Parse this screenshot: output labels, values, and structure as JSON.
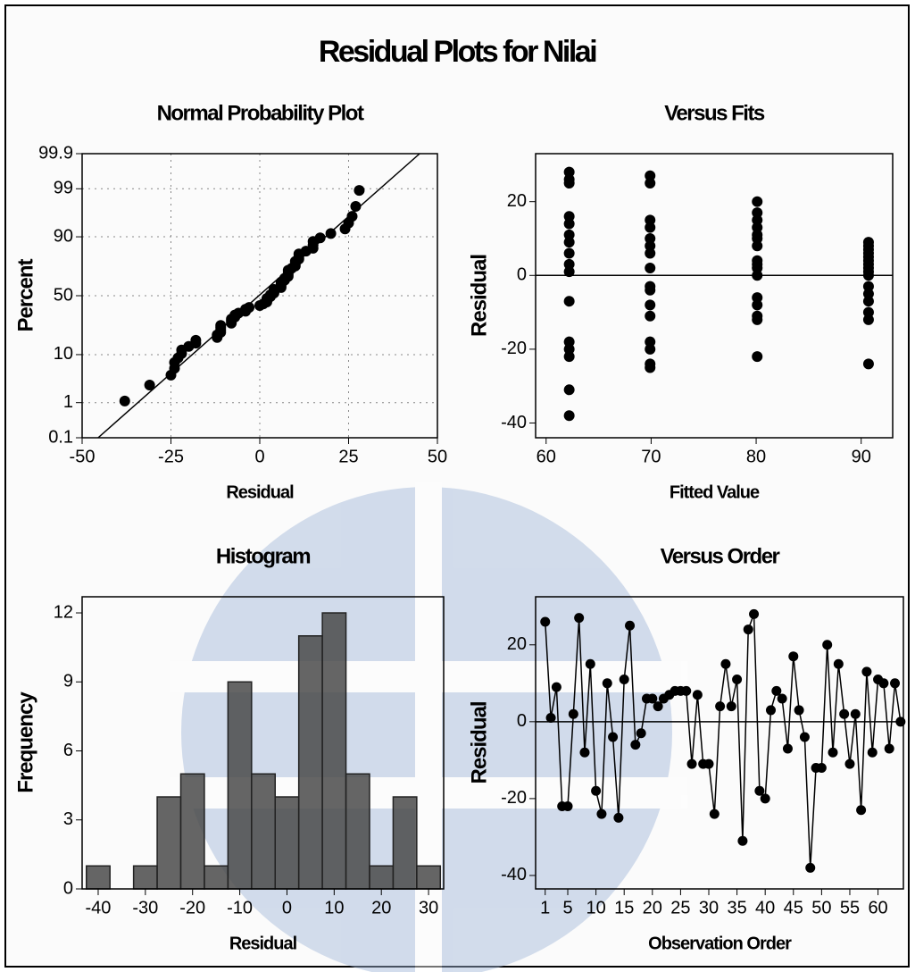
{
  "title": "Residual Plots for Nilai",
  "chart_data": [
    {
      "type": "scatter",
      "yscale": "probability",
      "title": "Normal Probability Plot",
      "x_label": "Residual",
      "y_label": "Percent",
      "color": "#000000",
      "grid": true,
      "x": [
        -38,
        -31,
        -25,
        -24,
        -24,
        -23,
        -22,
        -22,
        -20,
        -18,
        -18,
        -12,
        -12,
        -11,
        -11,
        -11,
        -11,
        -8,
        -8,
        -8,
        -7,
        -7,
        -6,
        -4,
        -4,
        -3,
        0,
        1,
        2,
        2,
        2,
        3,
        3,
        4,
        4,
        4,
        6,
        6,
        6,
        6,
        7,
        7,
        8,
        8,
        8,
        8,
        9,
        10,
        10,
        10,
        11,
        11,
        11,
        13,
        15,
        15,
        15,
        17,
        20,
        24,
        25,
        26,
        27,
        28
      ],
      "values": [
        1.1,
        2.6,
        4.2,
        5.7,
        7.3,
        8.8,
        10.4,
        11.9,
        13.5,
        15.1,
        16.6,
        18.2,
        19.7,
        21.3,
        22.8,
        24.4,
        25.9,
        27.5,
        29.0,
        30.6,
        32.1,
        33.7,
        35.2,
        36.8,
        38.4,
        39.9,
        41.5,
        43.0,
        44.6,
        46.1,
        47.7,
        49.2,
        50.8,
        52.3,
        53.9,
        55.4,
        57.0,
        58.5,
        60.1,
        61.6,
        63.2,
        64.8,
        66.3,
        67.9,
        69.4,
        71.0,
        72.5,
        74.1,
        75.6,
        77.2,
        78.7,
        80.3,
        81.8,
        83.4,
        84.9,
        86.5,
        88.1,
        89.6,
        91.2,
        92.7,
        94.3,
        95.8,
        97.4,
        98.9
      ],
      "fit_line": {
        "x": [
          -45.5,
          45
        ],
        "y": [
          0.1,
          99.9
        ]
      },
      "xlim": [
        -50,
        50
      ],
      "xticks": [
        -50,
        -25,
        0,
        25,
        50
      ],
      "ylim": [
        0.1,
        99.9
      ],
      "yticks": [
        0.1,
        1,
        10,
        50,
        90,
        99,
        99.9
      ]
    },
    {
      "type": "scatter",
      "title": "Versus Fits",
      "x_label": "Fitted Value",
      "y_label": "Residual",
      "color": "#000000",
      "x": [
        62.2,
        62.2,
        62.2,
        62.2,
        62.2,
        62.2,
        62.2,
        62.2,
        62.2,
        62.2,
        62.2,
        62.2,
        62.2,
        62.2,
        62.2,
        62.2,
        69.9,
        69.9,
        69.9,
        69.9,
        69.9,
        69.9,
        69.9,
        69.9,
        69.9,
        69.9,
        69.9,
        69.9,
        69.9,
        69.9,
        69.9,
        69.9,
        80.1,
        80.1,
        80.1,
        80.1,
        80.1,
        80.1,
        80.1,
        80.1,
        80.1,
        80.1,
        80.1,
        80.1,
        80.1,
        80.1,
        80.1,
        80.1,
        90.7,
        90.7,
        90.7,
        90.7,
        90.7,
        90.7,
        90.7,
        90.7,
        90.7,
        90.7,
        90.7,
        90.7,
        90.7,
        90.7,
        90.7,
        90.7
      ],
      "values": [
        28,
        26,
        25,
        16,
        14,
        11,
        9,
        6,
        3,
        1,
        -7,
        -18,
        -20,
        -31,
        -38,
        -22,
        27,
        25,
        15,
        13,
        10,
        8,
        6,
        2,
        -3,
        -8,
        -11,
        -18,
        -20,
        -24,
        -25,
        -4,
        20,
        17,
        15,
        13,
        11,
        10,
        8,
        4,
        2,
        0,
        -6,
        -8,
        -11,
        -12,
        -22,
        3,
        9,
        8,
        7,
        6,
        5,
        4,
        3,
        2,
        0,
        -3,
        -5,
        -7,
        -10,
        -12,
        -24,
        1
      ],
      "xlim": [
        59,
        93
      ],
      "xticks": [
        60,
        70,
        80,
        90
      ],
      "ylim": [
        -44,
        33
      ],
      "yticks": [
        -40,
        -20,
        0,
        20
      ]
    },
    {
      "type": "histogram",
      "title": "Histogram",
      "x_label": "Residual",
      "y_label": "Frequency",
      "color": "#4a4a4a",
      "bins": [
        -42.5,
        -37.5,
        -32.5,
        -27.5,
        -22.5,
        -17.5,
        -12.5,
        -7.5,
        -2.5,
        2.5,
        7.5,
        12.5,
        17.5,
        22.5,
        27.5,
        32.5
      ],
      "values": [
        1,
        0,
        1,
        4,
        5,
        1,
        9,
        5,
        4,
        11,
        12,
        5,
        1,
        4,
        1
      ],
      "xlim": [
        -43.4,
        33.2
      ],
      "xticks": [
        -40,
        -30,
        -20,
        -10,
        0,
        10,
        20,
        30
      ],
      "ylim": [
        0,
        12.7
      ],
      "yticks": [
        0,
        3,
        6,
        9,
        12
      ]
    },
    {
      "type": "line",
      "title": "Versus Order",
      "x_label": "Observation Order",
      "y_label": "Residual",
      "color": "#000000",
      "x": [
        1,
        2,
        3,
        4,
        5,
        6,
        7,
        8,
        9,
        10,
        11,
        12,
        13,
        14,
        15,
        16,
        17,
        18,
        19,
        20,
        21,
        22,
        23,
        24,
        25,
        26,
        27,
        28,
        29,
        30,
        31,
        32,
        33,
        34,
        35,
        36,
        37,
        38,
        39,
        40,
        41,
        42,
        43,
        44,
        45,
        46,
        47,
        48,
        49,
        50,
        51,
        52,
        53,
        54,
        55,
        56,
        57,
        58,
        59,
        60,
        61,
        62,
        63,
        64
      ],
      "values": [
        26,
        1,
        9,
        -22,
        -22,
        2,
        27,
        -8,
        15,
        -18,
        -24,
        10,
        -4,
        -25,
        11,
        25,
        -6,
        -3,
        6,
        6,
        4,
        6,
        7,
        8,
        8,
        8,
        -11,
        7,
        -11,
        -11,
        -24,
        4,
        15,
        4,
        11,
        -31,
        24,
        28,
        -18,
        -20,
        3,
        8,
        6,
        -7,
        17,
        3,
        -4,
        -38,
        -12,
        -12,
        20,
        -8,
        15,
        2,
        -11,
        2,
        -23,
        13,
        -8,
        11,
        10,
        -7,
        10,
        0
      ],
      "xlim": [
        -0.7,
        64.5
      ],
      "xticks": [
        1,
        5,
        10,
        15,
        20,
        25,
        30,
        35,
        40,
        45,
        50,
        55,
        60
      ],
      "ylim": [
        -43.5,
        32.5
      ],
      "yticks": [
        -40,
        -20,
        0,
        20
      ]
    }
  ]
}
